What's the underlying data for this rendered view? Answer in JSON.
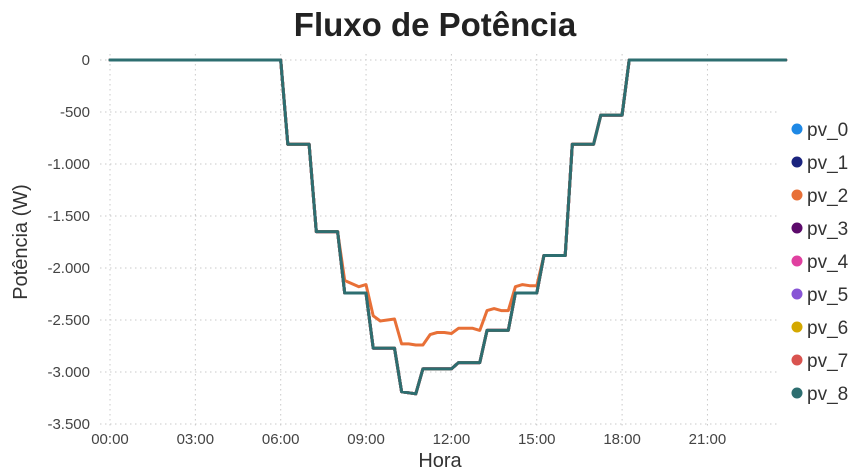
{
  "chart_data": {
    "type": "line",
    "title": "Fluxo de Potência",
    "xlabel": "Hora",
    "ylabel": "Potência (W)",
    "xlim": [
      0,
      23.8
    ],
    "ylim": [
      -3500,
      0
    ],
    "xticks": [
      {
        "value": 0,
        "label": "00:00"
      },
      {
        "value": 3,
        "label": "03:00"
      },
      {
        "value": 6,
        "label": "06:00"
      },
      {
        "value": 9,
        "label": "09:00"
      },
      {
        "value": 12,
        "label": "12:00"
      },
      {
        "value": 15,
        "label": "15:00"
      },
      {
        "value": 18,
        "label": "18:00"
      },
      {
        "value": 21,
        "label": "21:00"
      }
    ],
    "yticks": [
      {
        "value": 0,
        "label": "0"
      },
      {
        "value": -500,
        "label": "-500"
      },
      {
        "value": -1000,
        "label": "-1.000"
      },
      {
        "value": -1500,
        "label": "-1.500"
      },
      {
        "value": -2000,
        "label": "-2.000"
      },
      {
        "value": -2500,
        "label": "-2.500"
      },
      {
        "value": -3000,
        "label": "-3.000"
      },
      {
        "value": -3500,
        "label": "-3.500"
      }
    ],
    "grid": true,
    "legend_position": "right",
    "series": [
      {
        "name": "pv_0",
        "color": "#1e88e5",
        "profile": "base"
      },
      {
        "name": "pv_1",
        "color": "#1a237e",
        "profile": "base"
      },
      {
        "name": "pv_2",
        "color": "#e87037",
        "profile": "pv2"
      },
      {
        "name": "pv_3",
        "color": "#5c0a6b",
        "profile": "base"
      },
      {
        "name": "pv_4",
        "color": "#e040a0",
        "profile": "base"
      },
      {
        "name": "pv_5",
        "color": "#8855d6",
        "profile": "base"
      },
      {
        "name": "pv_6",
        "color": "#d4a800",
        "profile": "base"
      },
      {
        "name": "pv_7",
        "color": "#d9534f",
        "profile": "base"
      },
      {
        "name": "pv_8",
        "color": "#2d6e70",
        "profile": "base"
      }
    ],
    "profiles": {
      "base": {
        "x": [
          0,
          6.0,
          6.25,
          7.0,
          7.25,
          8.0,
          8.25,
          9.0,
          9.25,
          10.0,
          10.25,
          10.75,
          11.0,
          12.0,
          12.25,
          13.0,
          13.25,
          14.0,
          14.25,
          15.0,
          15.25,
          16.0,
          16.25,
          17.0,
          17.25,
          18.0,
          18.25,
          23.75
        ],
        "y": [
          0,
          0,
          -810,
          -810,
          -1650,
          -1650,
          -2240,
          -2240,
          -2770,
          -2770,
          -3190,
          -3210,
          -2970,
          -2970,
          -2910,
          -2910,
          -2600,
          -2600,
          -2240,
          -2240,
          -1880,
          -1880,
          -810,
          -810,
          -530,
          -530,
          0,
          0
        ]
      },
      "pv2": {
        "x": [
          0,
          6.0,
          6.25,
          7.0,
          7.25,
          8.0,
          8.25,
          8.5,
          8.75,
          9.0,
          9.25,
          9.5,
          9.75,
          10.0,
          10.25,
          10.5,
          10.75,
          11.0,
          11.25,
          11.5,
          11.75,
          12.0,
          12.25,
          12.5,
          12.75,
          13.0,
          13.25,
          13.5,
          13.75,
          14.0,
          14.25,
          14.5,
          14.75,
          15.0,
          15.25,
          16.0,
          16.25,
          17.0,
          17.25,
          18.0,
          18.25,
          23.75
        ],
        "y": [
          0,
          0,
          -810,
          -810,
          -1650,
          -1650,
          -2120,
          -2150,
          -2180,
          -2160,
          -2460,
          -2510,
          -2500,
          -2490,
          -2730,
          -2730,
          -2740,
          -2740,
          -2640,
          -2620,
          -2620,
          -2630,
          -2580,
          -2580,
          -2580,
          -2600,
          -2410,
          -2390,
          -2410,
          -2410,
          -2180,
          -2160,
          -2170,
          -2170,
          -1880,
          -1880,
          -810,
          -810,
          -530,
          -530,
          0,
          0
        ]
      }
    }
  }
}
